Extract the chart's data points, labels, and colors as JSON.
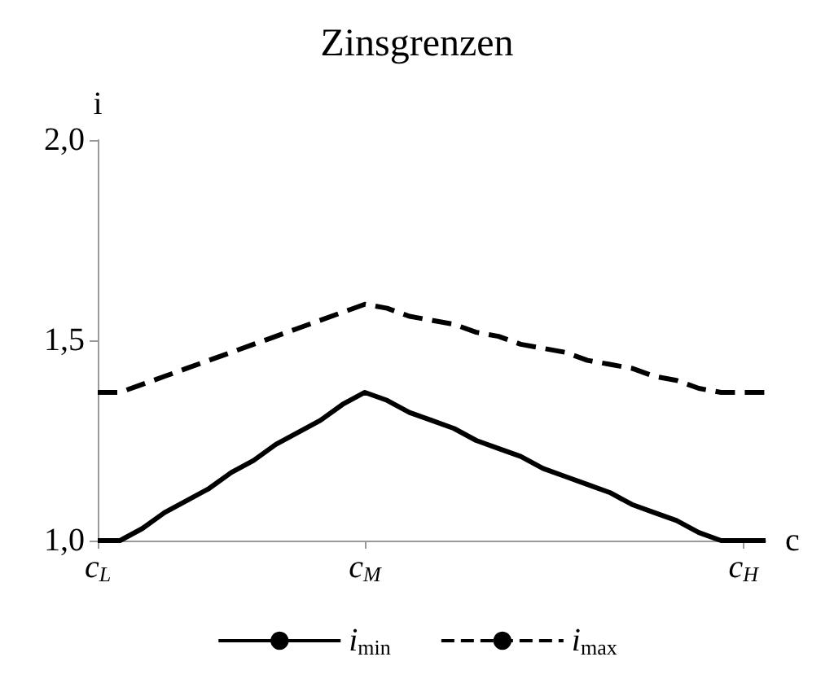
{
  "chart_data": {
    "type": "line",
    "title": "Zinsgrenzen",
    "xlabel": "c",
    "ylabel": "i",
    "categories": [
      "c$_{L}$",
      null,
      null,
      null,
      null,
      null,
      null,
      null,
      null,
      null,
      null,
      null,
      "c$_{M}$",
      null,
      null,
      null,
      null,
      null,
      null,
      null,
      null,
      null,
      null,
      null,
      null,
      null,
      null,
      null,
      null,
      "c$_{H}$",
      null
    ],
    "series": [
      {
        "name": "i$_{min}$",
        "color": "#000000",
        "line_style": "solid",
        "values": [
          1.0,
          1.0,
          1.03,
          1.07,
          1.1,
          1.13,
          1.17,
          1.2,
          1.24,
          1.27,
          1.3,
          1.34,
          1.37,
          1.35,
          1.32,
          1.3,
          1.28,
          1.25,
          1.23,
          1.21,
          1.18,
          1.16,
          1.14,
          1.12,
          1.09,
          1.07,
          1.05,
          1.02,
          1.0,
          1.0,
          1.0
        ]
      },
      {
        "name": "i$_{max}$",
        "color": "#000000",
        "line_style": "dashed",
        "values": [
          1.37,
          1.37,
          1.39,
          1.41,
          1.43,
          1.45,
          1.47,
          1.49,
          1.51,
          1.53,
          1.55,
          1.57,
          1.59,
          1.58,
          1.56,
          1.55,
          1.54,
          1.52,
          1.51,
          1.49,
          1.48,
          1.47,
          1.45,
          1.44,
          1.43,
          1.41,
          1.4,
          1.38,
          1.37,
          1.37,
          1.37
        ]
      }
    ],
    "ylim": [
      1,
      2
    ],
    "yticks": [
      {
        "value": 1,
        "label": "1,0"
      },
      {
        "value": 1.5,
        "label": "1,5"
      },
      {
        "value": 2,
        "label": "2,0"
      }
    ],
    "grid": false,
    "legend": "bottom",
    "marker": "none"
  }
}
